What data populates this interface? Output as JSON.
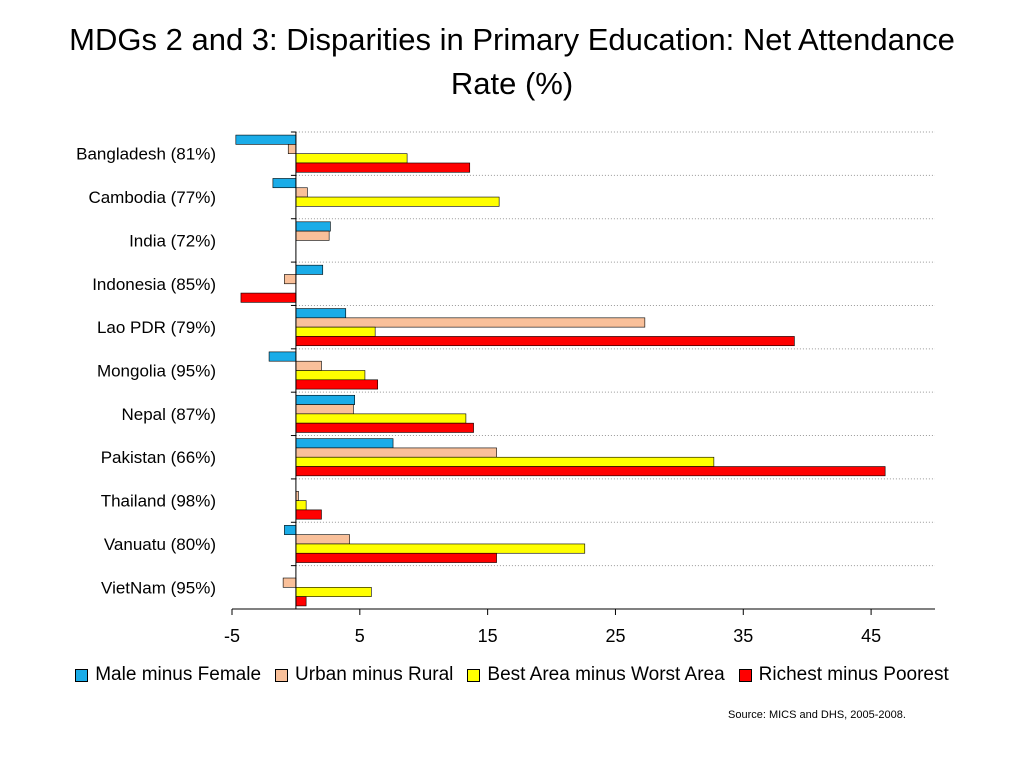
{
  "chart_data": {
    "type": "bar",
    "orientation": "horizontal",
    "title": "MDGs 2 and 3: Disparities in Primary Education: Net Attendance Rate (%)",
    "categories": [
      "Bangladesh (81%)",
      "Cambodia (77%)",
      "India (72%)",
      "Indonesia (85%)",
      "Lao PDR (79%)",
      "Mongolia (95%)",
      "Nepal (87%)",
      "Pakistan (66%)",
      "Thailand (98%)",
      "Vanuatu (80%)",
      "VietNam (95%)"
    ],
    "series": [
      {
        "name": "Male minus Female",
        "color": "#1AACE8",
        "values": [
          -4.7,
          -1.8,
          2.7,
          2.1,
          3.9,
          -2.1,
          4.6,
          7.6,
          0,
          -0.9,
          0
        ]
      },
      {
        "name": "Urban minus Rural",
        "color": "#F9C09A",
        "values": [
          -0.6,
          0.9,
          2.6,
          -0.9,
          27.3,
          2.0,
          4.5,
          15.7,
          0.2,
          4.2,
          -1.0
        ]
      },
      {
        "name": "Best Area minus Worst Area",
        "color": "#FFFF00",
        "values": [
          8.7,
          15.9,
          0,
          0,
          6.2,
          5.4,
          13.3,
          32.7,
          0.8,
          22.6,
          5.9
        ]
      },
      {
        "name": "Richest minus Poorest",
        "color": "#FF0000",
        "values": [
          13.6,
          0,
          0,
          -4.3,
          39.0,
          6.4,
          13.9,
          46.1,
          2.0,
          15.7,
          0.8
        ]
      }
    ],
    "xlim": [
      -5,
      50
    ],
    "x_ticks": [
      -5,
      5,
      15,
      25,
      35,
      45
    ],
    "grid": "horizontal dotted",
    "legend_position": "bottom",
    "source": "Source: MICS and DHS, 2005-2008."
  }
}
